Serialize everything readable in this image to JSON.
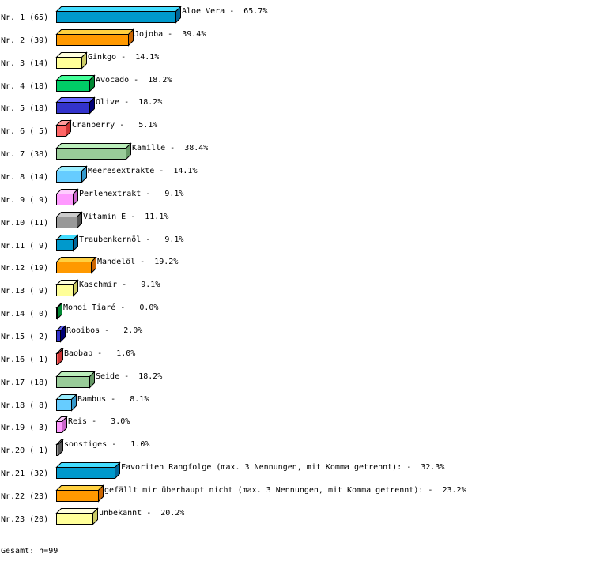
{
  "chart_data": {
    "type": "bar",
    "orientation": "horizontal",
    "style": "3d",
    "rows": [
      {
        "rank": "Nr. 1",
        "count": "(65)",
        "name": "Aloe Vera",
        "value": 65.7,
        "pct": "65.7%"
      },
      {
        "rank": "Nr. 2",
        "count": "(39)",
        "name": "Jojoba",
        "value": 39.4,
        "pct": "39.4%"
      },
      {
        "rank": "Nr. 3",
        "count": "(14)",
        "name": "Ginkgo",
        "value": 14.1,
        "pct": "14.1%"
      },
      {
        "rank": "Nr. 4",
        "count": "(18)",
        "name": "Avocado",
        "value": 18.2,
        "pct": "18.2%"
      },
      {
        "rank": "Nr. 5",
        "count": "(18)",
        "name": "Olive",
        "value": 18.2,
        "pct": "18.2%"
      },
      {
        "rank": "Nr. 6",
        "count": "( 5)",
        "name": "Cranberry",
        "value": 5.1,
        "pct": " 5.1%"
      },
      {
        "rank": "Nr. 7",
        "count": "(38)",
        "name": "Kamille",
        "value": 38.4,
        "pct": "38.4%"
      },
      {
        "rank": "Nr. 8",
        "count": "(14)",
        "name": "Meeresextrakte",
        "value": 14.1,
        "pct": "14.1%"
      },
      {
        "rank": "Nr. 9",
        "count": "( 9)",
        "name": "Perlenextrakt",
        "value": 9.1,
        "pct": " 9.1%"
      },
      {
        "rank": "Nr.10",
        "count": "(11)",
        "name": "Vitamin E",
        "value": 11.1,
        "pct": "11.1%"
      },
      {
        "rank": "Nr.11",
        "count": "( 9)",
        "name": "Traubenkernöl",
        "value": 9.1,
        "pct": " 9.1%"
      },
      {
        "rank": "Nr.12",
        "count": "(19)",
        "name": "Mandelöl",
        "value": 19.2,
        "pct": "19.2%"
      },
      {
        "rank": "Nr.13",
        "count": "( 9)",
        "name": "Kaschmir",
        "value": 9.1,
        "pct": " 9.1%"
      },
      {
        "rank": "Nr.14",
        "count": "( 0)",
        "name": "Monoi Tiaré",
        "value": 0.0,
        "pct": " 0.0%"
      },
      {
        "rank": "Nr.15",
        "count": "( 2)",
        "name": "Rooibos",
        "value": 2.0,
        "pct": " 2.0%"
      },
      {
        "rank": "Nr.16",
        "count": "( 1)",
        "name": "Baobab",
        "value": 1.0,
        "pct": " 1.0%"
      },
      {
        "rank": "Nr.17",
        "count": "(18)",
        "name": "Seide",
        "value": 18.2,
        "pct": "18.2%"
      },
      {
        "rank": "Nr.18",
        "count": "( 8)",
        "name": "Bambus",
        "value": 8.1,
        "pct": " 8.1%"
      },
      {
        "rank": "Nr.19",
        "count": "( 3)",
        "name": "Reis",
        "value": 3.0,
        "pct": " 3.0%"
      },
      {
        "rank": "Nr.20",
        "count": "( 1)",
        "name": "sonstiges",
        "value": 1.0,
        "pct": " 1.0%"
      },
      {
        "rank": "Nr.21",
        "count": "(32)",
        "name": "Favoriten Rangfolge (max. 3 Nennungen, mit Komma getrennt):",
        "value": 32.3,
        "pct": "32.3%"
      },
      {
        "rank": "Nr.22",
        "count": "(23)",
        "name": "gefällt mir überhaupt nicht (max. 3 Nennungen, mit Komma getrennt):",
        "value": 23.2,
        "pct": "23.2%"
      },
      {
        "rank": "Nr.23",
        "count": "(20)",
        "name": "unbekannt",
        "value": 20.2,
        "pct": "20.2%"
      }
    ],
    "palette": [
      {
        "front": "#0099cc",
        "top": "#44ddff",
        "side": "#006699"
      },
      {
        "front": "#ff9900",
        "top": "#ffd040",
        "side": "#cc6600"
      },
      {
        "front": "#ffff99",
        "top": "#ffffdd",
        "side": "#cccc66"
      },
      {
        "front": "#00cc66",
        "top": "#44ff99",
        "side": "#008833"
      },
      {
        "front": "#3333cc",
        "top": "#6666ff",
        "side": "#000077"
      },
      {
        "front": "#ff6666",
        "top": "#ff9999",
        "side": "#cc3333"
      },
      {
        "front": "#99cc99",
        "top": "#bbeebb",
        "side": "#669966"
      },
      {
        "front": "#66ccff",
        "top": "#99eeff",
        "side": "#3399cc"
      },
      {
        "front": "#ff99ff",
        "top": "#ffccff",
        "side": "#cc66cc"
      },
      {
        "front": "#999999",
        "top": "#cccccc",
        "side": "#555555"
      }
    ],
    "total": "Gesamt: n=99"
  }
}
